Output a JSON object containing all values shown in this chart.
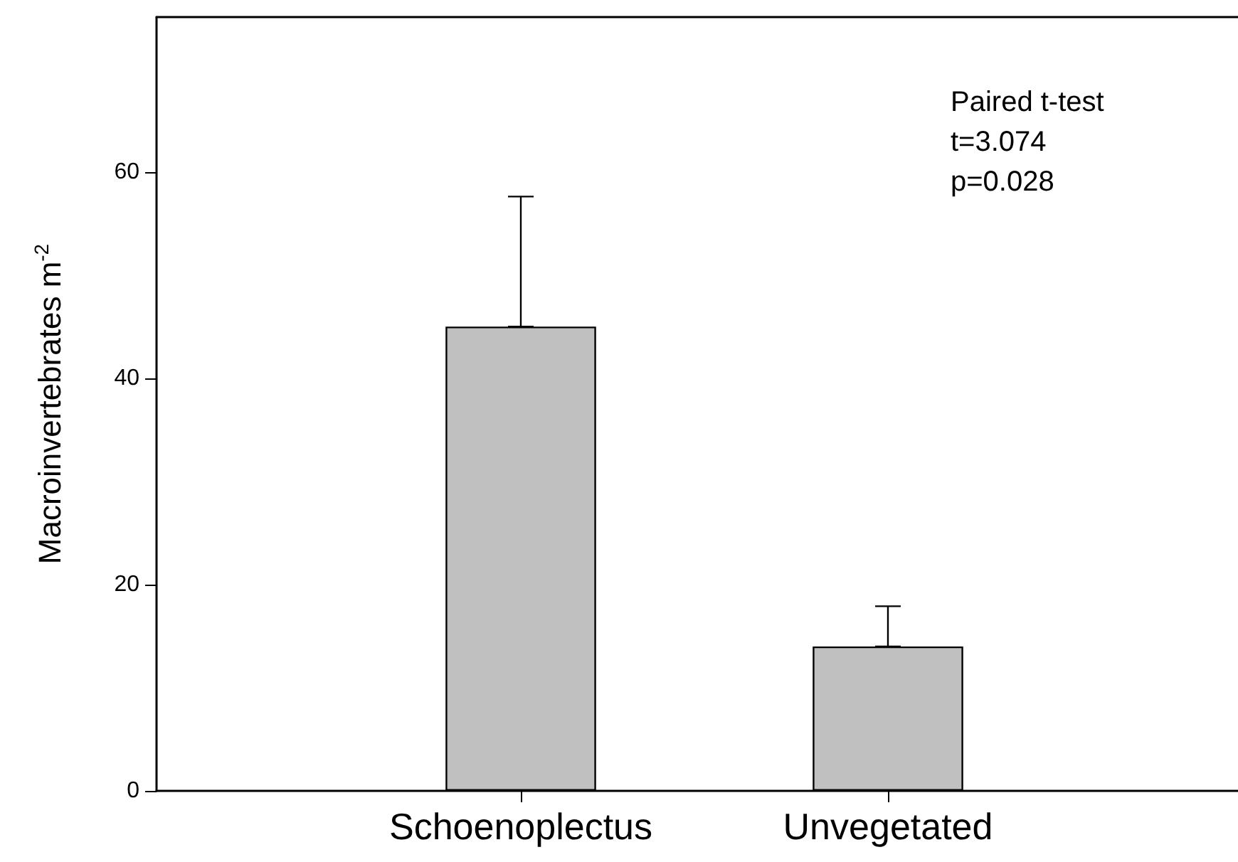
{
  "chart_data": {
    "type": "bar",
    "ylabel": "Macroinvertebrates m$^{-2}$",
    "categories": [
      "Schoenoplectus",
      "Unvegetated"
    ],
    "values": [
      45,
      14
    ],
    "errors": [
      [
        45,
        57.6
      ],
      [
        14,
        17.9
      ]
    ],
    "color": "#c0c0c0",
    "ylim": [
      0,
      75
    ],
    "yticks": [
      0,
      20,
      40,
      60
    ],
    "annotations": [
      "Paired t-test",
      "t=3.074",
      "p=0.028"
    ]
  }
}
